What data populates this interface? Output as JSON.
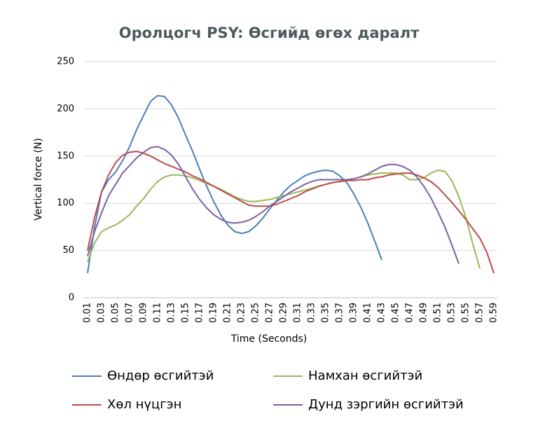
{
  "chart_data": {
    "type": "line",
    "title": "Оролцогч PSY: Өсгийд өгөх даралт",
    "xlabel": "Time (Seconds)",
    "ylabel": "Vertical force (N)",
    "categories": [
      "0.01",
      null,
      "0.03",
      null,
      "0.05",
      null,
      "0.07",
      null,
      "0.09",
      null,
      "0.11",
      null,
      "0.13",
      null,
      "0.15",
      null,
      "0.17",
      null,
      "0.19",
      null,
      "0.21",
      null,
      "0.23",
      null,
      "0.25",
      null,
      "0.27",
      null,
      "0.29",
      null,
      "0.31",
      null,
      "0.33",
      null,
      "0.35",
      null,
      "0.37",
      null,
      "0.39",
      null,
      "0.41",
      null,
      "0.43",
      null,
      "0.45",
      null,
      "0.47",
      null,
      "0.49",
      null,
      "0.51",
      null,
      "0.53",
      null,
      "0.55",
      null,
      "0.57",
      null,
      "0.59"
    ],
    "ylim": [
      0,
      250
    ],
    "yticks": [
      0,
      50,
      100,
      150,
      200,
      250
    ],
    "grid": true,
    "series": [
      {
        "name": "Өндөр өсгийтэй",
        "color": "#4a7ebb",
        "values": [
          26,
          75,
          112,
          125,
          133,
          145,
          160,
          178,
          193,
          208,
          214,
          213,
          204,
          190,
          172,
          155,
          136,
          118,
          102,
          88,
          77,
          70,
          68,
          70,
          76,
          84,
          94,
          103,
          112,
          119,
          124,
          129,
          132,
          134,
          135,
          134,
          129,
          122,
          110,
          96,
          79,
          60,
          40,
          null,
          null,
          null,
          null,
          null,
          null,
          null,
          null,
          null,
          null,
          null,
          null,
          null,
          null,
          null,
          null
        ]
      },
      {
        "name": "Намхан өсгийтэй",
        "color": "#98b954",
        "values": [
          38,
          58,
          70,
          74,
          77,
          82,
          88,
          97,
          105,
          115,
          123,
          128,
          130,
          130,
          129,
          127,
          124,
          121,
          118,
          115,
          111,
          107,
          104,
          102,
          102,
          103,
          104,
          106,
          108,
          110,
          112,
          114,
          116,
          118,
          120,
          122,
          123,
          124,
          126,
          128,
          130,
          131,
          132,
          132,
          132,
          130,
          125,
          125,
          127,
          132,
          135,
          134,
          124,
          107,
          85,
          57,
          31,
          null,
          null
        ]
      },
      {
        "name": "Хөл нүцгэн",
        "color": "#be4b48",
        "values": [
          50,
          85,
          112,
          130,
          143,
          151,
          154,
          155,
          153,
          150,
          146,
          142,
          139,
          136,
          133,
          129,
          126,
          122,
          118,
          114,
          110,
          106,
          102,
          98,
          97,
          97,
          97,
          99,
          102,
          105,
          108,
          112,
          115,
          118,
          120,
          122,
          123,
          124,
          124,
          125,
          125,
          127,
          128,
          130,
          131,
          132,
          132,
          130,
          127,
          123,
          117,
          109,
          101,
          92,
          83,
          73,
          63,
          48,
          26
        ]
      },
      {
        "name": "Дунд зэргийн өсгийтэй",
        "color": "#7d60a0",
        "values": [
          44,
          70,
          90,
          108,
          120,
          132,
          140,
          148,
          154,
          159,
          160,
          157,
          151,
          141,
          128,
          115,
          104,
          95,
          88,
          83,
          80,
          79,
          80,
          82,
          86,
          91,
          97,
          102,
          107,
          112,
          116,
          120,
          123,
          125,
          125,
          125,
          125,
          125,
          126,
          128,
          131,
          135,
          139,
          141,
          141,
          139,
          135,
          128,
          118,
          106,
          91,
          75,
          56,
          36,
          null,
          null,
          null,
          null,
          null
        ]
      }
    ]
  }
}
